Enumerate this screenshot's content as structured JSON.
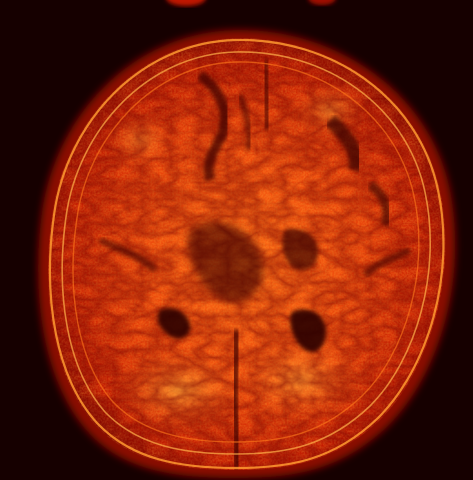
{
  "image": {
    "modality_colormap": "hot",
    "colors": {
      "background": "#160000",
      "edge": "#b81200",
      "tissue_mid": "#e63a08",
      "tissue_bright": "#ff7a1a",
      "highlight": "#ffd35a",
      "dark_structure": "#3a0000"
    }
  }
}
